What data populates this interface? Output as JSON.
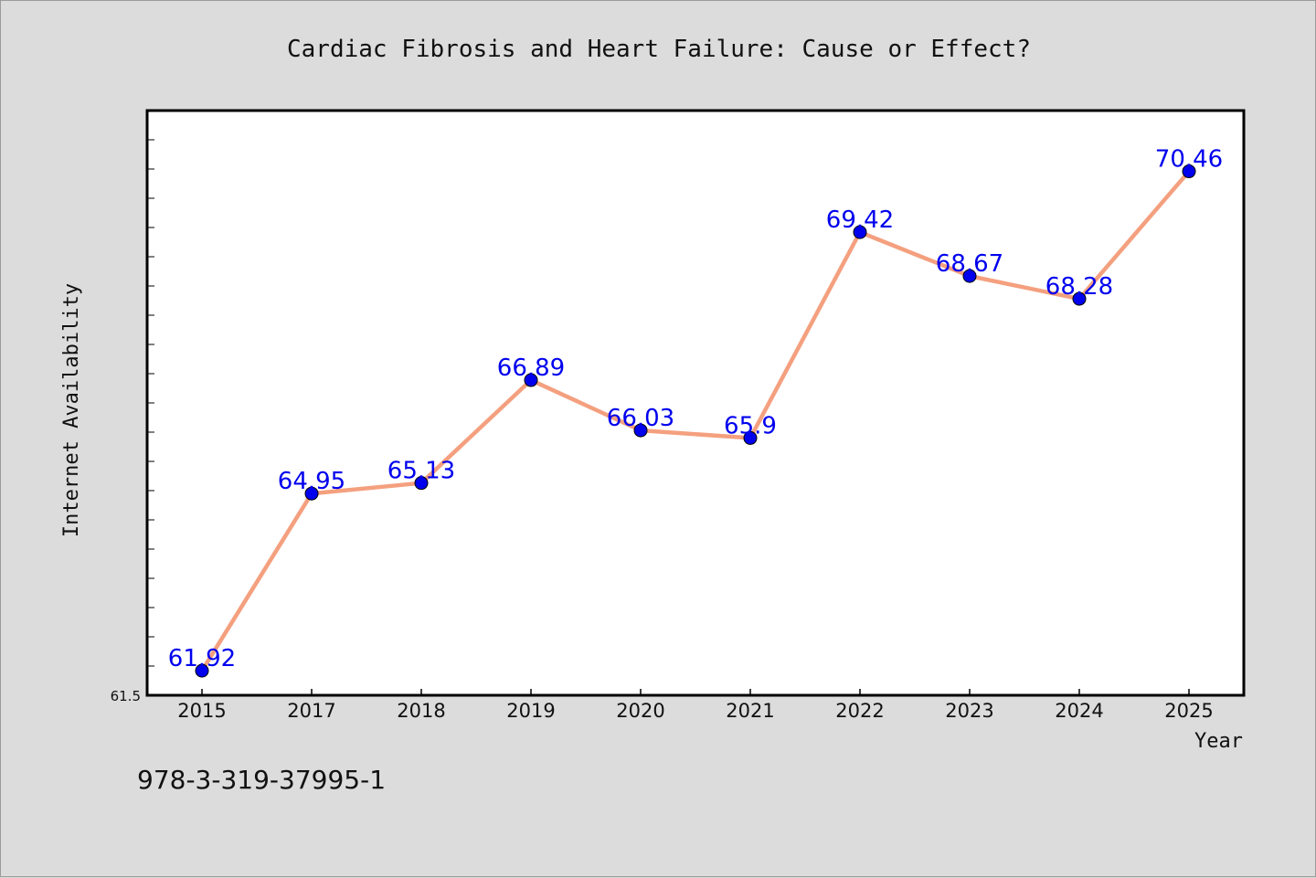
{
  "chart_data": {
    "type": "line",
    "title": "Cardiac Fibrosis and Heart Failure: Cause or Effect?",
    "xlabel": "Year",
    "ylabel": "Internet Availability",
    "categories": [
      "2015",
      "2017",
      "2018",
      "2019",
      "2020",
      "2021",
      "2022",
      "2023",
      "2024",
      "2025"
    ],
    "series": [
      {
        "values": [
          61.92,
          64.95,
          65.13,
          66.89,
          66.03,
          65.9,
          69.42,
          68.67,
          68.28,
          70.46
        ]
      }
    ],
    "ylim": [
      61.5,
      71.5
    ],
    "y_tick_label_shown": "61.5",
    "grid": false,
    "legend": "none",
    "colors": {
      "line": "#f4a07f",
      "marker": "#0000ee",
      "data_label": "#0000ee",
      "background": "#dcdcdc",
      "plot_bg": "#ffffff"
    }
  },
  "footer": {
    "text": "978-3-319-37995-1"
  }
}
